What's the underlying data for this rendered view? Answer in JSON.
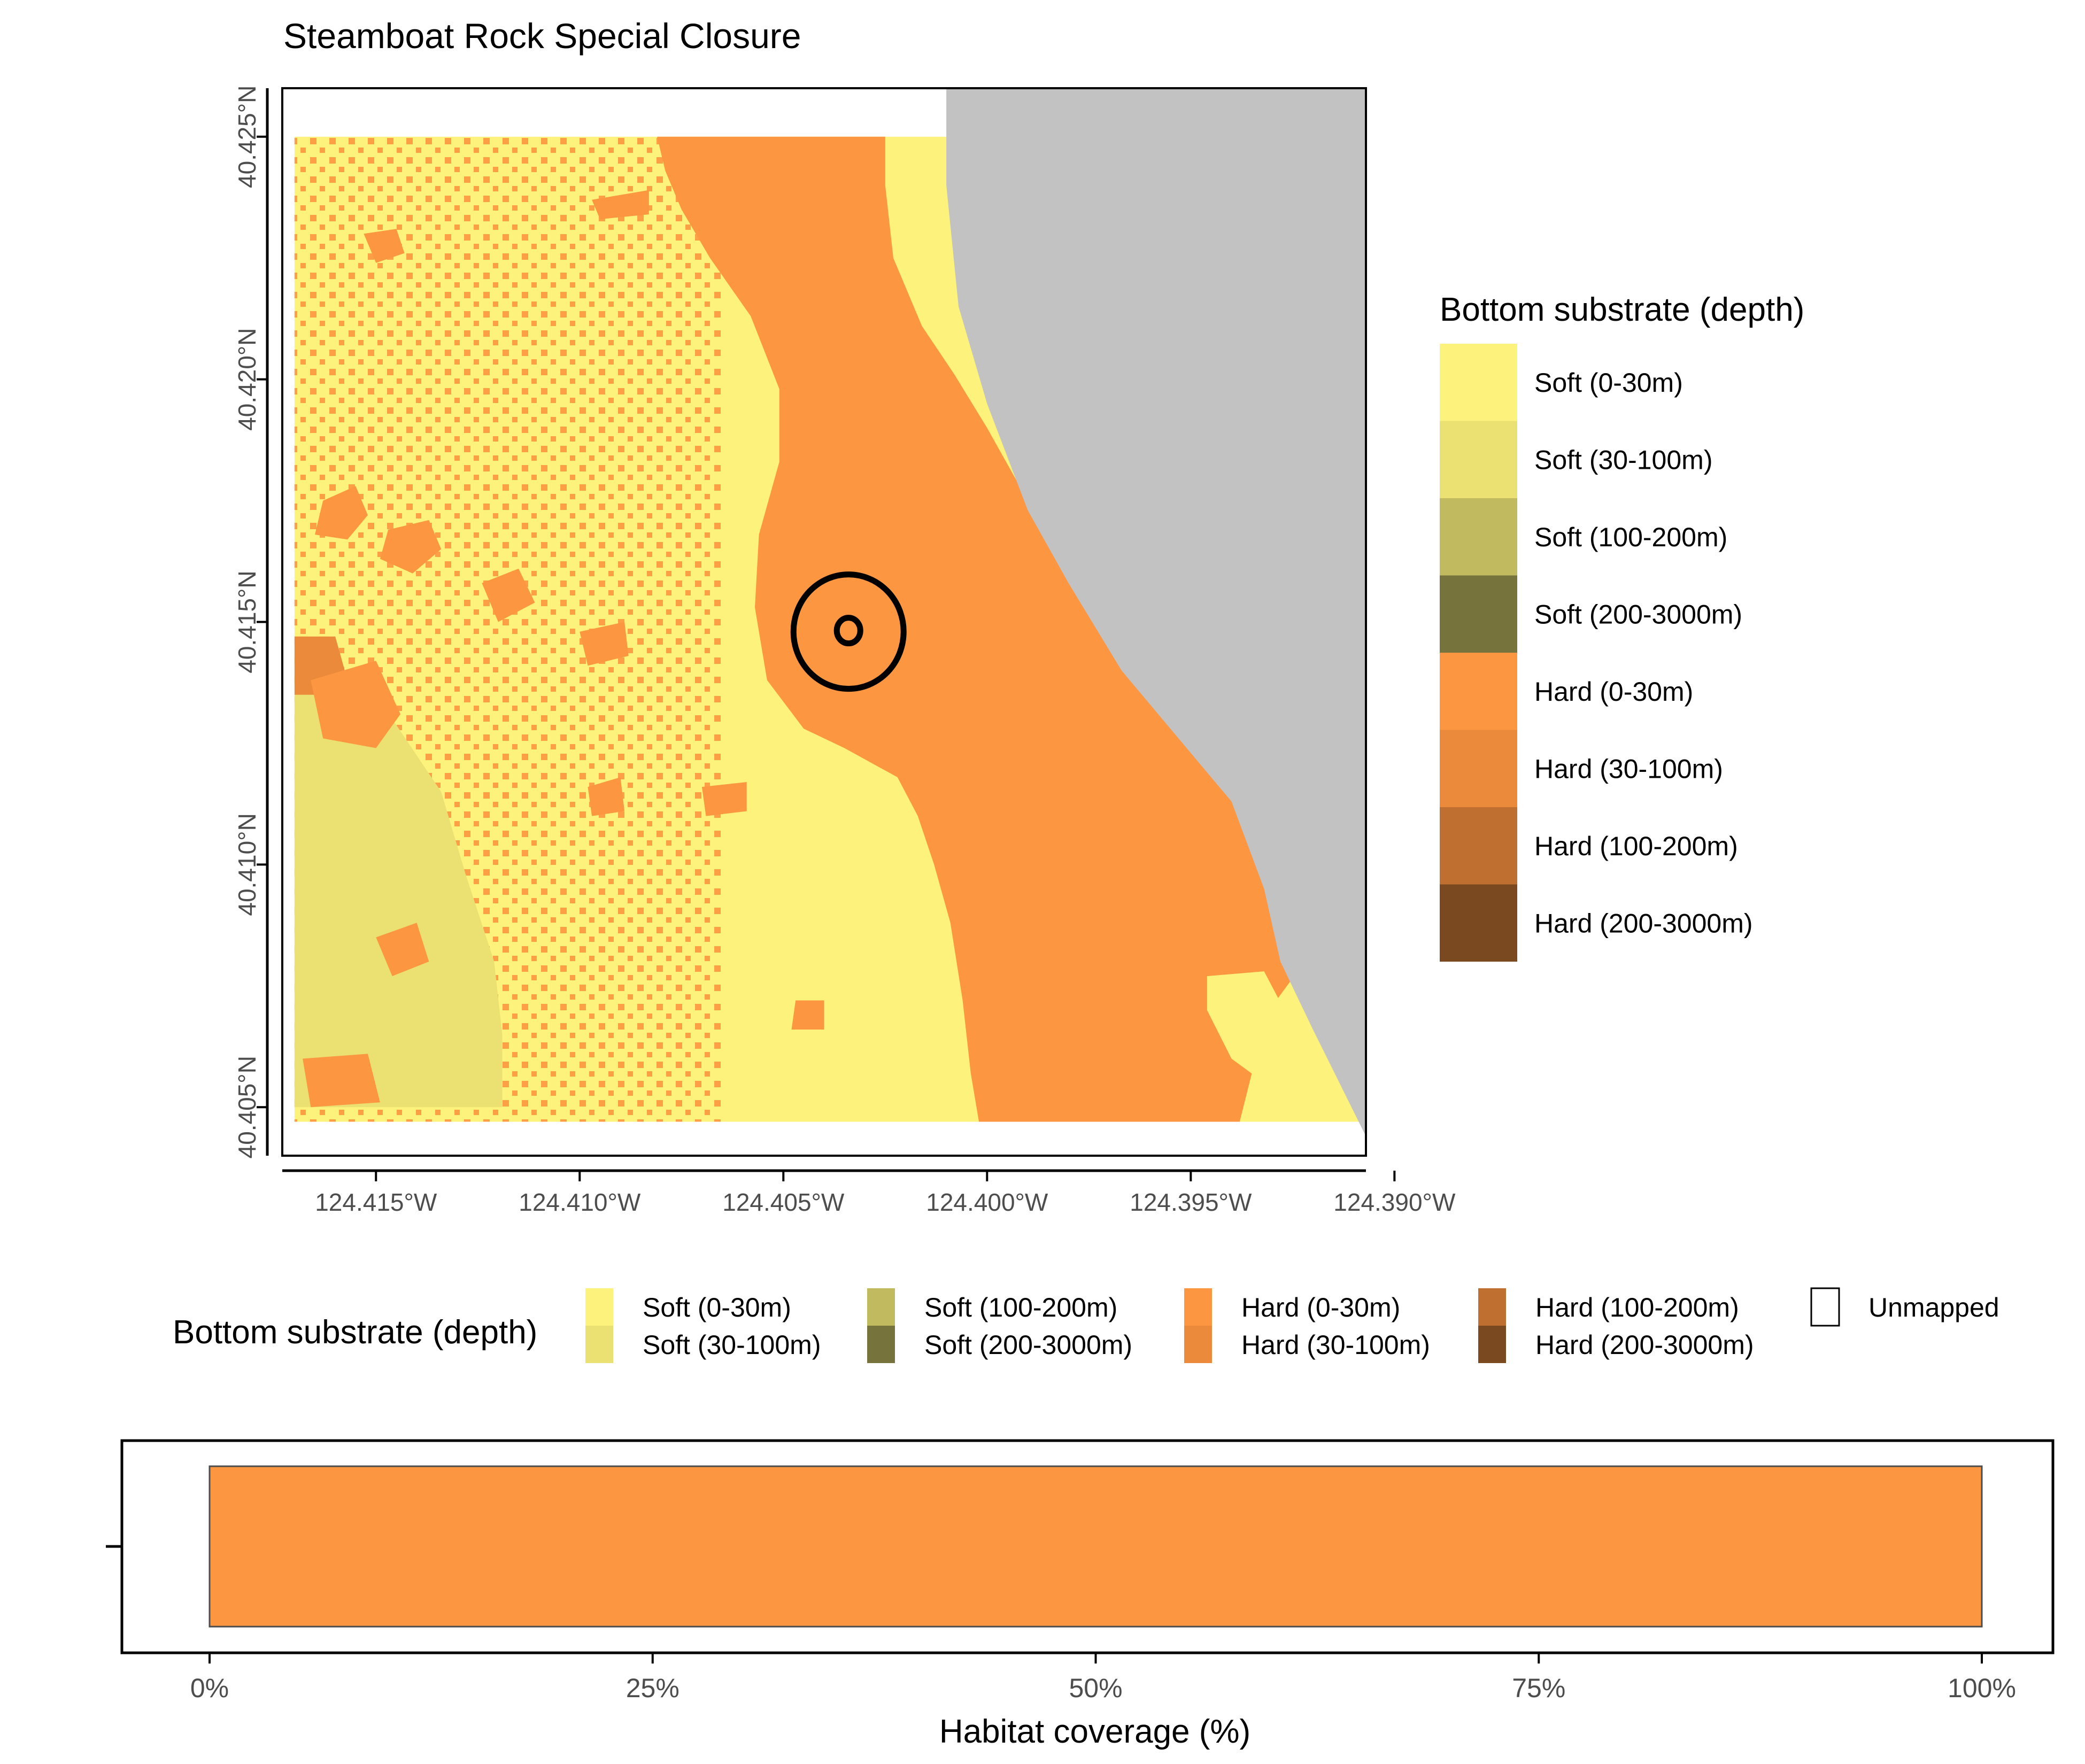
{
  "title": "Steamboat Rock Special Closure",
  "colors": {
    "soft_0_30": "#FDF27C",
    "soft_30_100": "#EAE172",
    "soft_100_200": "#C1BA5F",
    "soft_200_3000": "#76733D",
    "hard_0_30": "#FC9641",
    "hard_30_100": "#EA8A3A",
    "hard_100_200": "#BF7030",
    "hard_200_3000": "#7A4920",
    "land": "#C2C2C2",
    "unmapped": "#FFFFFF",
    "outline": "#000000"
  },
  "map": {
    "x_ticks": [
      "124.415°W",
      "124.410°W",
      "124.405°W",
      "124.400°W",
      "124.395°W",
      "124.390°W"
    ],
    "y_ticks": [
      "40.425°N",
      "40.420°N",
      "40.415°N",
      "40.410°N",
      "40.405°N"
    ],
    "x_tick_values": [
      -124.415,
      -124.41,
      -124.405,
      -124.4,
      -124.395,
      -124.39
    ],
    "y_tick_values": [
      40.425,
      40.42,
      40.415,
      40.41,
      40.405
    ],
    "x_range": [
      -124.4173,
      -124.3907
    ],
    "y_range": [
      40.404,
      40.426
    ],
    "closure_center": [
      -124.4034,
      40.4148
    ],
    "features": [
      {
        "name": "Soft (30-100m)",
        "color_key": "soft_30_100",
        "polygon": [
          [
            -124.417,
            40.4135
          ],
          [
            -124.415,
            40.4135
          ],
          [
            -124.4134,
            40.4115
          ],
          [
            -124.4128,
            40.4098
          ],
          [
            -124.4121,
            40.408
          ],
          [
            -124.4119,
            40.4065
          ],
          [
            -124.4119,
            40.405
          ],
          [
            -124.417,
            40.405
          ]
        ]
      },
      {
        "name": "Hard (30-100m)",
        "color_key": "hard_30_100",
        "polygon": [
          [
            -124.417,
            40.4147
          ],
          [
            -124.416,
            40.4147
          ],
          [
            -124.4156,
            40.4135
          ],
          [
            -124.417,
            40.4135
          ]
        ]
      },
      {
        "name": "Hard (0-30m)",
        "color_key": "hard_0_30",
        "polygon": [
          [
            -124.4081,
            40.425
          ],
          [
            -124.4025,
            40.425
          ],
          [
            -124.4025,
            40.424
          ],
          [
            -124.4023,
            40.4225
          ],
          [
            -124.4016,
            40.4211
          ],
          [
            -124.4008,
            40.4201
          ],
          [
            -124.4,
            40.419
          ],
          [
            -124.399,
            40.4175
          ],
          [
            -124.3981,
            40.416
          ],
          [
            -124.397,
            40.4146
          ],
          [
            -124.3955,
            40.4133
          ],
          [
            -124.3942,
            40.4123
          ],
          [
            -124.3934,
            40.411
          ],
          [
            -124.393,
            40.4098
          ],
          [
            -124.3925,
            40.4085
          ],
          [
            -124.3922,
            40.408
          ],
          [
            -124.3929,
            40.4072
          ],
          [
            -124.3935,
            40.4057
          ],
          [
            -124.3938,
            40.4047
          ],
          [
            -124.4002,
            40.4047
          ],
          [
            -124.4004,
            40.4057
          ],
          [
            -124.4006,
            40.4072
          ],
          [
            -124.4009,
            40.4088
          ],
          [
            -124.4013,
            40.41
          ],
          [
            -124.4017,
            40.411
          ],
          [
            -124.4022,
            40.4118
          ],
          [
            -124.4035,
            40.4124
          ],
          [
            -124.4045,
            40.4128
          ],
          [
            -124.4054,
            40.4138
          ],
          [
            -124.4057,
            40.4153
          ],
          [
            -124.4056,
            40.4168
          ],
          [
            -124.4051,
            40.4183
          ],
          [
            -124.4051,
            40.4198
          ],
          [
            -124.4058,
            40.4213
          ],
          [
            -124.4068,
            40.4225
          ],
          [
            -124.4075,
            40.4235
          ],
          [
            -124.4079,
            40.4243
          ]
        ]
      },
      {
        "name": "Soft (0-30m)",
        "color_key": "soft_0_30",
        "polygon": [
          [
            -124.3946,
            40.4077
          ],
          [
            -124.3932,
            40.4078
          ],
          [
            -124.3927,
            40.407
          ],
          [
            -124.3927,
            40.4052
          ],
          [
            -124.394,
            40.406
          ],
          [
            -124.3946,
            40.407
          ]
        ]
      },
      {
        "name": "Hard (0-30m)",
        "color_key": "hard_0_30",
        "polygon": [
          [
            -124.4163,
            40.4175
          ],
          [
            -124.4155,
            40.4178
          ],
          [
            -124.4152,
            40.4172
          ],
          [
            -124.4157,
            40.4167
          ],
          [
            -124.4165,
            40.4168
          ]
        ]
      },
      {
        "name": "Hard (0-30m)",
        "color_key": "hard_0_30",
        "polygon": [
          [
            -124.4147,
            40.4169
          ],
          [
            -124.4137,
            40.4171
          ],
          [
            -124.4134,
            40.4165
          ],
          [
            -124.4141,
            40.416
          ],
          [
            -124.4149,
            40.4163
          ]
        ]
      },
      {
        "name": "Hard (0-30m)",
        "color_key": "hard_0_30",
        "polygon": [
          [
            -124.4166,
            40.4138
          ],
          [
            -124.415,
            40.4142
          ],
          [
            -124.4144,
            40.4131
          ],
          [
            -124.415,
            40.4124
          ],
          [
            -124.4163,
            40.4126
          ]
        ]
      },
      {
        "name": "Hard (0-30m)",
        "color_key": "hard_0_30",
        "polygon": [
          [
            -124.4153,
            40.423
          ],
          [
            -124.4145,
            40.4231
          ],
          [
            -124.4143,
            40.4226
          ],
          [
            -124.415,
            40.4224
          ]
        ]
      },
      {
        "name": "Hard (0-30m)",
        "color_key": "hard_0_30",
        "polygon": [
          [
            -124.4097,
            40.4237
          ],
          [
            -124.4083,
            40.4239
          ],
          [
            -124.4083,
            40.4234
          ],
          [
            -124.4095,
            40.4233
          ]
        ]
      },
      {
        "name": "Hard (0-30m)",
        "color_key": "hard_0_30",
        "polygon": [
          [
            -124.4124,
            40.4158
          ],
          [
            -124.4115,
            40.4161
          ],
          [
            -124.4111,
            40.4154
          ],
          [
            -124.412,
            40.415
          ]
        ]
      },
      {
        "name": "Hard (0-30m)",
        "color_key": "hard_0_30",
        "polygon": [
          [
            -124.41,
            40.4148
          ],
          [
            -124.4089,
            40.415
          ],
          [
            -124.4088,
            40.4143
          ],
          [
            -124.4098,
            40.4141
          ]
        ]
      },
      {
        "name": "Hard (0-30m)",
        "color_key": "hard_0_30",
        "polygon": [
          [
            -124.4098,
            40.4116
          ],
          [
            -124.409,
            40.4118
          ],
          [
            -124.4089,
            40.4111
          ],
          [
            -124.4097,
            40.411
          ]
        ]
      },
      {
        "name": "Hard (0-30m)",
        "color_key": "hard_0_30",
        "polygon": [
          [
            -124.407,
            40.4116
          ],
          [
            -124.4059,
            40.4117
          ],
          [
            -124.4059,
            40.4111
          ],
          [
            -124.4069,
            40.411
          ]
        ]
      },
      {
        "name": "Hard (0-30m)",
        "color_key": "hard_0_30",
        "polygon": [
          [
            -124.415,
            40.4085
          ],
          [
            -124.414,
            40.4088
          ],
          [
            -124.4137,
            40.408
          ],
          [
            -124.4146,
            40.4077
          ]
        ]
      },
      {
        "name": "Hard (0-30m)",
        "color_key": "hard_0_30",
        "polygon": [
          [
            -124.4047,
            40.4072
          ],
          [
            -124.404,
            40.4072
          ],
          [
            -124.404,
            40.4066
          ],
          [
            -124.4048,
            40.4066
          ]
        ]
      },
      {
        "name": "Hard (0-30m)",
        "color_key": "hard_0_30",
        "polygon": [
          [
            -124.4168,
            40.406
          ],
          [
            -124.4152,
            40.4061
          ],
          [
            -124.4149,
            40.4051
          ],
          [
            -124.4166,
            40.405
          ]
        ]
      },
      {
        "name": "Land",
        "color_key": "land",
        "polygon": [
          [
            -124.401,
            40.426
          ],
          [
            -124.3907,
            40.426
          ],
          [
            -124.3907,
            40.4044
          ],
          [
            -124.392,
            40.4066
          ],
          [
            -124.3928,
            40.408
          ],
          [
            -124.3932,
            40.4095
          ],
          [
            -124.394,
            40.4113
          ],
          [
            -124.3955,
            40.4128
          ],
          [
            -124.3967,
            40.414
          ],
          [
            -124.398,
            40.4158
          ],
          [
            -124.399,
            40.4173
          ],
          [
            -124.4,
            40.4195
          ],
          [
            -124.4007,
            40.4215
          ],
          [
            -124.401,
            40.424
          ]
        ]
      }
    ]
  },
  "legend_right": {
    "title": "Bottom substrate (depth)",
    "items": [
      {
        "label": "Soft (0-30m)",
        "color_key": "soft_0_30"
      },
      {
        "label": "Soft (30-100m)",
        "color_key": "soft_30_100"
      },
      {
        "label": "Soft (100-200m)",
        "color_key": "soft_100_200"
      },
      {
        "label": "Soft (200-3000m)",
        "color_key": "soft_200_3000"
      },
      {
        "label": "Hard (0-30m)",
        "color_key": "hard_0_30"
      },
      {
        "label": "Hard (30-100m)",
        "color_key": "hard_30_100"
      },
      {
        "label": "Hard (100-200m)",
        "color_key": "hard_100_200"
      },
      {
        "label": "Hard (200-3000m)",
        "color_key": "hard_200_3000"
      }
    ]
  },
  "legend_bottom": {
    "title": "Bottom substrate (depth)",
    "columns": [
      [
        {
          "label": "Soft (0-30m)",
          "color_key": "soft_0_30"
        },
        {
          "label": "Soft (30-100m)",
          "color_key": "soft_30_100"
        }
      ],
      [
        {
          "label": "Soft (100-200m)",
          "color_key": "soft_100_200"
        },
        {
          "label": "Soft (200-3000m)",
          "color_key": "soft_200_3000"
        }
      ],
      [
        {
          "label": "Hard (0-30m)",
          "color_key": "hard_0_30"
        },
        {
          "label": "Hard (30-100m)",
          "color_key": "hard_30_100"
        }
      ],
      [
        {
          "label": "Hard (100-200m)",
          "color_key": "hard_100_200"
        },
        {
          "label": "Hard (200-3000m)",
          "color_key": "hard_200_3000"
        }
      ],
      [
        {
          "label": "Unmapped",
          "color_key": "unmapped"
        }
      ]
    ]
  },
  "chart_data": {
    "type": "bar",
    "orientation": "horizontal",
    "stacked": true,
    "xlabel": "Habitat coverage (%)",
    "ylabel": "",
    "xlim": [
      0,
      100
    ],
    "x_ticks": [
      "0%",
      "25%",
      "50%",
      "75%",
      "100%"
    ],
    "x_tick_values": [
      0,
      25,
      50,
      75,
      100
    ],
    "series": [
      {
        "name": "Hard (0-30m)",
        "values": [
          100
        ],
        "color_key": "hard_0_30"
      }
    ]
  }
}
